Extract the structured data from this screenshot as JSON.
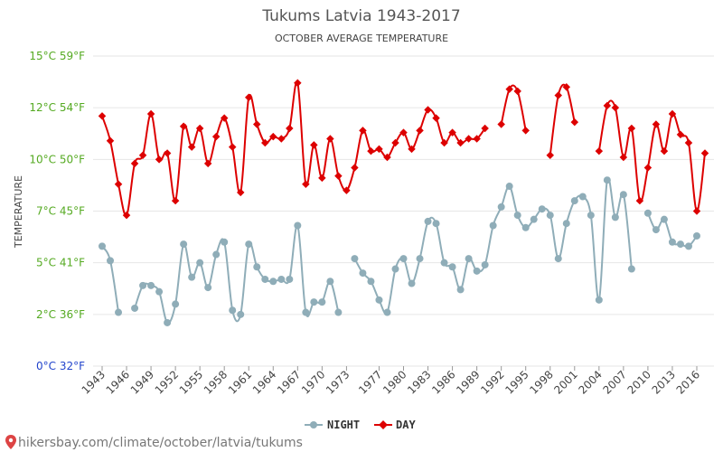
{
  "chart_data": {
    "type": "line",
    "title": "Tukums Latvia 1943-2017",
    "subtitle": "OCTOBER AVERAGE TEMPERATURE",
    "ylabel": "TEMPERATURE",
    "xlabel": "",
    "ylim": [
      0,
      15
    ],
    "y_ticks": [
      {
        "value": 0,
        "label": "0°C 32°F"
      },
      {
        "value": 2.5,
        "label": "2°C 36°F"
      },
      {
        "value": 5,
        "label": "5°C 41°F"
      },
      {
        "value": 7.5,
        "label": "7°C 45°F"
      },
      {
        "value": 10,
        "label": "10°C 50°F"
      },
      {
        "value": 12.5,
        "label": "12°C 54°F"
      },
      {
        "value": 15,
        "label": "15°C 59°F"
      }
    ],
    "x_ticks": [
      1943,
      1946,
      1949,
      1952,
      1955,
      1958,
      1961,
      1964,
      1967,
      1970,
      1973,
      1977,
      1980,
      1983,
      1986,
      1989,
      1992,
      1995,
      1998,
      2001,
      2004,
      2007,
      2010,
      2013,
      2016
    ],
    "x_tick_labels": [
      "1943",
      "1946",
      "1949",
      "1952",
      "1955",
      "1958",
      "1961",
      "1964",
      "1967",
      "1970",
      "1973",
      "1977",
      "1980",
      "1983",
      "1986",
      "1989",
      "1992",
      "1995",
      "1998",
      "2001",
      "2004",
      "2007",
      "2010",
      "2013",
      "2016"
    ],
    "grid": true,
    "legend_position": "bottom",
    "x": [
      1943,
      1944,
      1945,
      1946,
      1947,
      1948,
      1949,
      1950,
      1951,
      1952,
      1953,
      1954,
      1955,
      1956,
      1957,
      1958,
      1959,
      1960,
      1961,
      1962,
      1963,
      1964,
      1965,
      1966,
      1967,
      1968,
      1969,
      1970,
      1971,
      1972,
      1973,
      1974,
      1975,
      1976,
      1977,
      1978,
      1979,
      1980,
      1981,
      1982,
      1983,
      1984,
      1985,
      1986,
      1987,
      1988,
      1989,
      1990,
      1991,
      1992,
      1993,
      1994,
      1995,
      1996,
      1997,
      1998,
      1999,
      2000,
      2001,
      2002,
      2003,
      2004,
      2005,
      2006,
      2007,
      2008,
      2009,
      2010,
      2011,
      2012,
      2013,
      2014,
      2015,
      2016,
      2017
    ],
    "series": [
      {
        "name": "NIGHT",
        "color": "#8fadb8",
        "values": [
          5.8,
          5.1,
          2.6,
          null,
          2.8,
          3.9,
          3.9,
          3.6,
          2.1,
          3.0,
          5.9,
          4.3,
          5.0,
          3.8,
          5.4,
          6.0,
          2.7,
          2.5,
          5.9,
          4.8,
          4.2,
          4.1,
          4.2,
          4.2,
          6.8,
          2.6,
          3.1,
          3.1,
          4.1,
          2.6,
          null,
          5.2,
          4.5,
          4.1,
          3.2,
          2.6,
          4.7,
          5.2,
          4.0,
          5.2,
          7.0,
          6.9,
          5.0,
          4.8,
          3.7,
          5.2,
          4.6,
          4.9,
          6.8,
          7.7,
          8.7,
          7.3,
          6.7,
          7.1,
          7.6,
          7.3,
          5.2,
          6.9,
          8.0,
          8.2,
          7.3,
          3.2,
          9.0,
          7.2,
          8.3,
          4.7,
          null,
          7.4,
          6.6,
          7.1,
          6.0,
          5.9,
          5.8,
          6.3,
          null
        ]
      },
      {
        "name": "DAY",
        "color": "#dd0000",
        "values": [
          12.1,
          10.9,
          8.8,
          7.3,
          9.8,
          10.2,
          12.2,
          10.0,
          10.3,
          8.0,
          11.6,
          10.6,
          11.5,
          9.8,
          11.1,
          12.0,
          10.6,
          8.4,
          13.0,
          11.7,
          10.8,
          11.1,
          11.0,
          11.5,
          13.7,
          8.8,
          10.7,
          9.1,
          11.0,
          9.2,
          8.5,
          9.6,
          11.4,
          10.4,
          10.5,
          10.1,
          10.8,
          11.3,
          10.5,
          11.4,
          12.4,
          12.0,
          10.8,
          11.3,
          10.8,
          11.0,
          11.0,
          11.5,
          null,
          11.7,
          13.4,
          13.3,
          11.4,
          null,
          null,
          10.2,
          13.1,
          13.5,
          11.8,
          null,
          null,
          10.4,
          12.6,
          12.5,
          10.1,
          11.5,
          8.0,
          9.6,
          11.7,
          10.4,
          12.2,
          11.2,
          10.8,
          7.5,
          10.3
        ]
      }
    ]
  },
  "legend": {
    "night_label": "NIGHT",
    "day_label": "DAY"
  },
  "footer": {
    "source_text": "hikersbay.com/climate/october/latvia/tukums"
  },
  "colors": {
    "grid": "#e6e6e6",
    "y_tick_green": "#55aa22",
    "y_tick_blue": "#2244cc",
    "pin_icon": "#dd4444"
  }
}
